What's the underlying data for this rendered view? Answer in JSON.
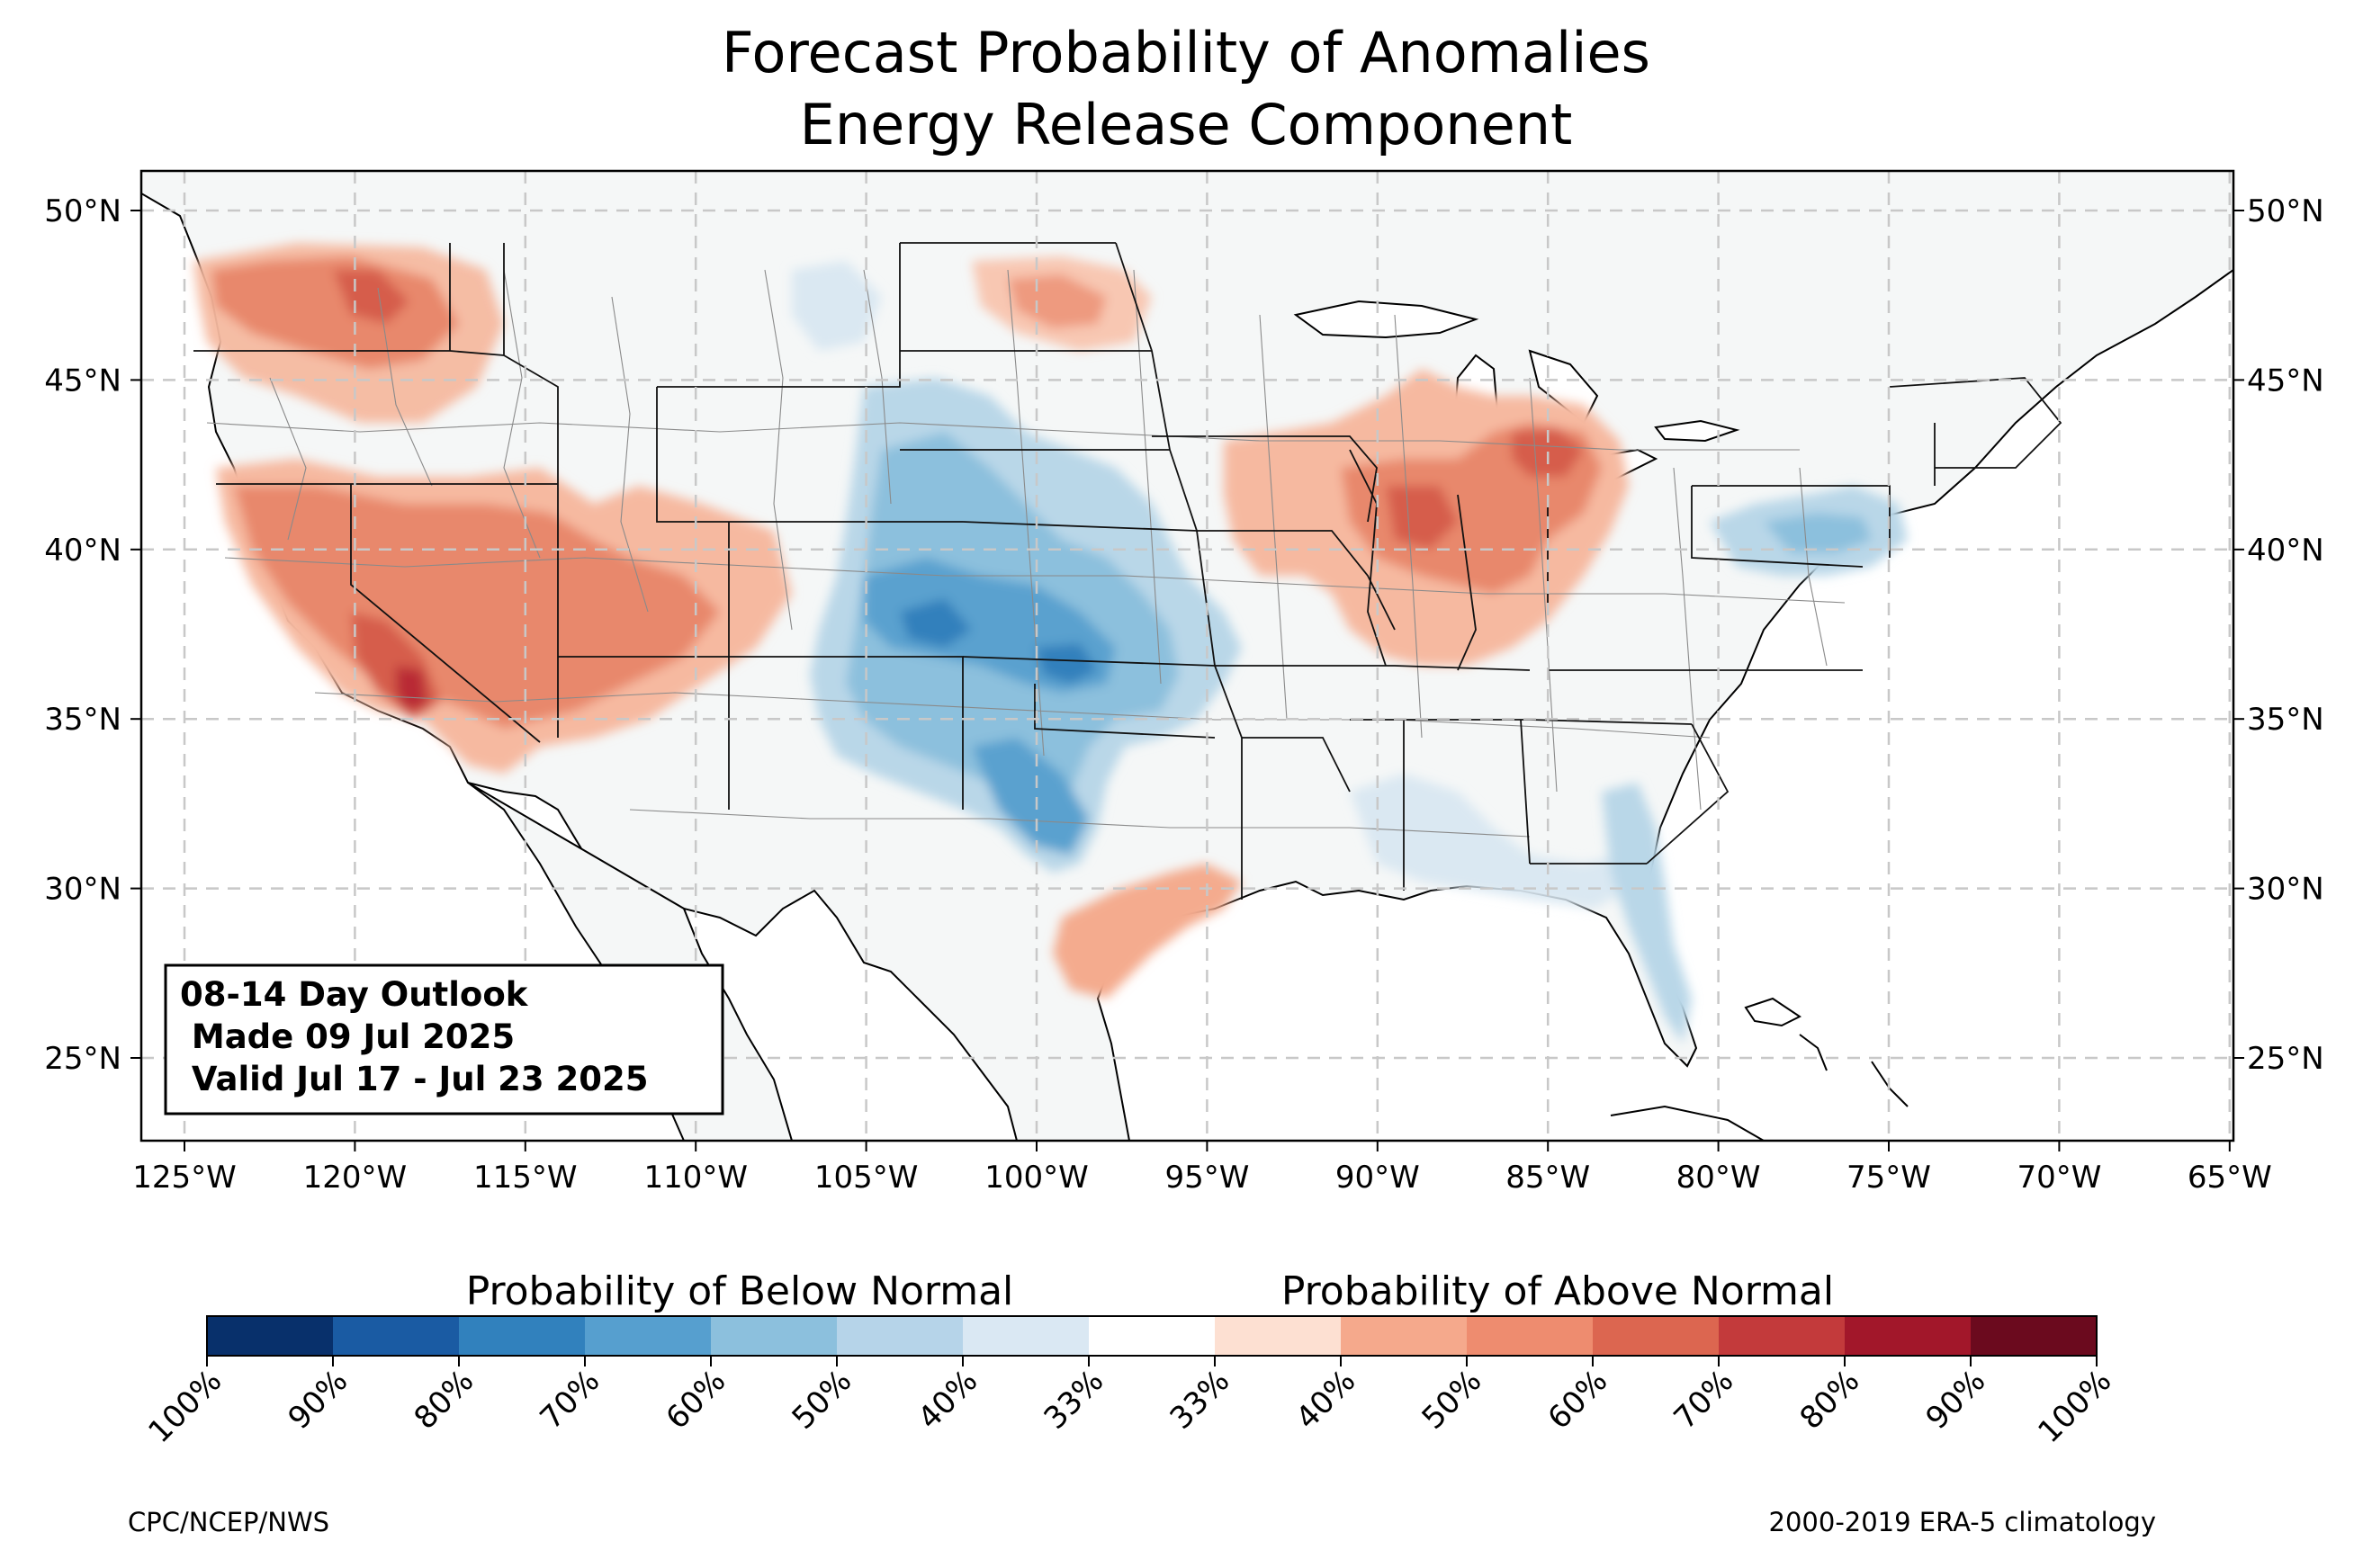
{
  "title": {
    "line1": "Forecast Probability of Anomalies",
    "line2": "Energy Release Component"
  },
  "map": {
    "lon_ticks": [
      "125°W",
      "120°W",
      "115°W",
      "110°W",
      "105°W",
      "100°W",
      "95°W",
      "90°W",
      "85°W",
      "80°W",
      "75°W",
      "70°W",
      "65°W"
    ],
    "lat_ticks": [
      "50°N",
      "45°N",
      "40°N",
      "35°N",
      "30°N",
      "25°N"
    ],
    "land_color": "#f5f7f7",
    "colors": {
      "above_33_40": "#fbdecf",
      "above_40_50": "#f4ab8e",
      "above_50_60": "#e58268",
      "above_60_70": "#d45c4b",
      "above_70_80": "#b92a34",
      "below_33_40": "#dae8f2",
      "below_40_50": "#b9d7e8",
      "below_50_60": "#8cc0dd",
      "below_60_70": "#5aa1cf",
      "below_70_80": "#3280bc"
    }
  },
  "infobox": {
    "line1": "08-14 Day Outlook",
    "line2": " Made 09 Jul 2025",
    "line3": " Valid Jul 17 - Jul 23 2025"
  },
  "colorbar": {
    "below_label": "Probability of Below Normal",
    "above_label": "Probability of Above Normal",
    "colors": [
      "#08306b",
      "#1a5ba3",
      "#3181bd",
      "#569fcf",
      "#8cc0dd",
      "#b6d4e9",
      "#dae8f3",
      "#ffffff",
      "#fde0d2",
      "#f5a98c",
      "#ee8c6f",
      "#dc6650",
      "#c33a3b",
      "#a2172a",
      "#6b0a1e"
    ],
    "ticks": [
      "100%",
      "90%",
      "80%",
      "70%",
      "60%",
      "50%",
      "40%",
      "33%",
      "33%",
      "40%",
      "50%",
      "60%",
      "70%",
      "80%",
      "90%",
      "100%"
    ]
  },
  "footer": {
    "left": "CPC/NCEP/NWS",
    "right": "2000-2019 ERA-5 climatology"
  }
}
